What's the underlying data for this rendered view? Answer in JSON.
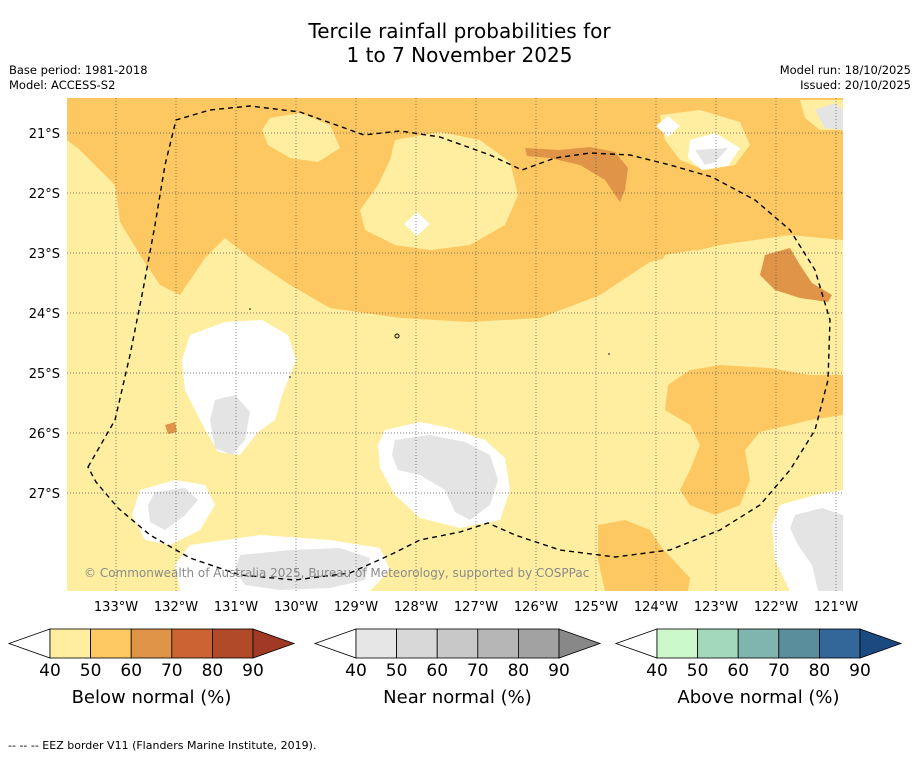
{
  "title_line1": "Tercile rainfall probabilities for",
  "title_line2": "1 to 7 November 2025",
  "base_period": "Base period: 1981-2018",
  "model": "Model: ACCESS-S2",
  "model_run": "Model run: 18/10/2025",
  "issued": "Issued: 20/10/2025",
  "copyright": "© Commonwealth of Australia 2025, Bureau of Meteorology, supported by COSPPac",
  "lon_labels": [
    "133°W",
    "132°W",
    "131°W",
    "130°W",
    "129°W",
    "128°W",
    "127°W",
    "126°W",
    "125°W",
    "124°W",
    "123°W",
    "122°W",
    "121°W"
  ],
  "lat_labels": [
    "21°S",
    "22°S",
    "23°S",
    "24°S",
    "25°S",
    "26°S",
    "27°S"
  ],
  "colorbars": [
    {
      "label": "Below normal (%)",
      "ticks": [
        "40",
        "50",
        "60",
        "70",
        "80",
        "90"
      ],
      "colors": [
        "#ffeea0",
        "#fdc862",
        "#e09448",
        "#cc6432",
        "#b04a28",
        "#a03a24"
      ]
    },
    {
      "label": "Near normal (%)",
      "ticks": [
        "40",
        "50",
        "60",
        "70",
        "80",
        "90"
      ],
      "colors": [
        "#e6e6e6",
        "#d8d8d8",
        "#c8c8c8",
        "#b6b6b6",
        "#a2a2a2",
        "#888888"
      ]
    },
    {
      "label": "Above normal (%)",
      "ticks": [
        "40",
        "50",
        "60",
        "70",
        "80",
        "90"
      ],
      "colors": [
        "#ccf8cc",
        "#a4d8bc",
        "#80b4ae",
        "#5a8e9c",
        "#336699",
        "#1a4a80"
      ]
    }
  ],
  "footer": "--  --  -- EEZ border V11 (Flanders Marine Institute, 2019).",
  "colors": {
    "below_40": "#ffeea0",
    "below_50": "#fdc862",
    "below_60": "#e09448",
    "near_40": "#e4e4e4",
    "background": "#ffffff"
  }
}
